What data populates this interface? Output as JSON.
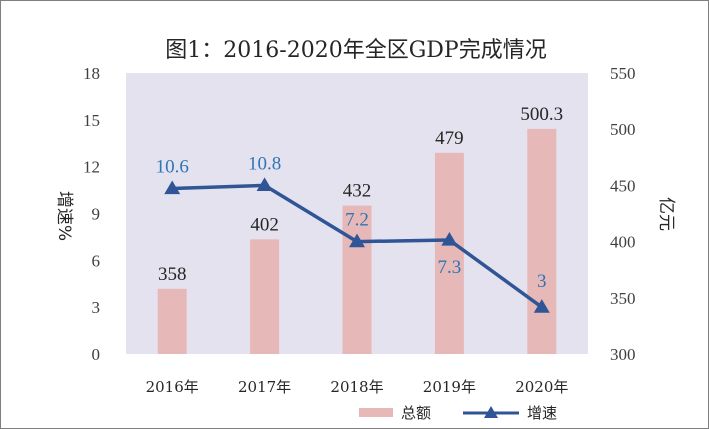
{
  "chart_data": {
    "type": "bar",
    "title": "图1：2016-2020年全区GDP完成情况",
    "categories": [
      "2016年",
      "2017年",
      "2018年",
      "2019年",
      "2020年"
    ],
    "series": [
      {
        "name": "总额",
        "type": "bar",
        "axis": "right",
        "values": [
          358,
          402,
          432,
          479,
          500.3
        ],
        "labels": [
          "358",
          "402",
          "432",
          "479",
          "500.3"
        ],
        "color": "#e6b8b7"
      },
      {
        "name": "增速",
        "type": "line",
        "axis": "left",
        "values": [
          10.6,
          10.8,
          7.2,
          7.3,
          3
        ],
        "labels": [
          "10.6",
          "10.8",
          "7.2",
          "7.3",
          "3"
        ],
        "color": "#2f5597",
        "label_color": "#2e75b6",
        "marker": "triangle"
      }
    ],
    "y_left": {
      "label": "增速%",
      "ylim": [
        0,
        18
      ],
      "ticks": [
        "0",
        "3",
        "6",
        "9",
        "12",
        "15",
        "18"
      ]
    },
    "y_right": {
      "label": "亿元",
      "ylim": [
        300,
        550
      ],
      "ticks": [
        "300",
        "350",
        "400",
        "450",
        "500",
        "550"
      ]
    },
    "plot_background": "#e4e2ee",
    "grid": false,
    "legend": {
      "position": "bottom-right",
      "entries": [
        "总额",
        "增速"
      ]
    }
  }
}
